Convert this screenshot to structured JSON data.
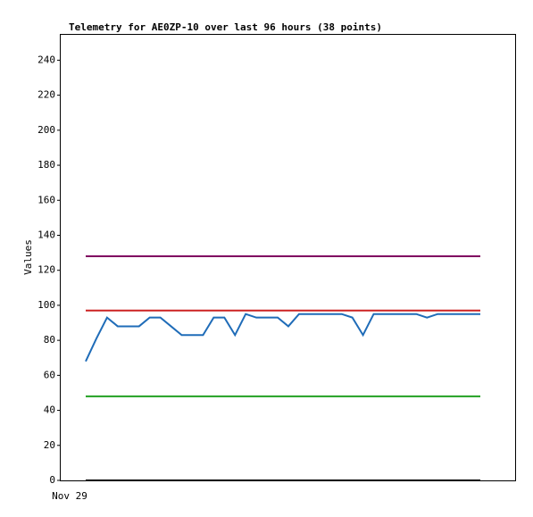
{
  "chart_data": {
    "type": "line",
    "title": "Telemetry for AE0ZP-10 over last 96 hours (38 points)",
    "y_label": "Values",
    "categories": [
      "Nov 29",
      null,
      null,
      null,
      null,
      null,
      null,
      null,
      null,
      null,
      null,
      null,
      null,
      null,
      null,
      null,
      null,
      null,
      null,
      null,
      null,
      null,
      null,
      null,
      null,
      null,
      null,
      null,
      null,
      null,
      null,
      null,
      null,
      null,
      null,
      null,
      null,
      null
    ],
    "series": [
      {
        "color": "#800060",
        "values": [
          128,
          128,
          128,
          128,
          128,
          128,
          128,
          128,
          128,
          128,
          128,
          128,
          128,
          128,
          128,
          128,
          128,
          128,
          128,
          128,
          128,
          128,
          128,
          128,
          128,
          128,
          128,
          128,
          128,
          128,
          128,
          128,
          128,
          128,
          128,
          128,
          128,
          128
        ]
      },
      {
        "color": "#cc2222",
        "values": [
          97,
          97,
          97,
          97,
          97,
          97,
          97,
          97,
          97,
          97,
          97,
          97,
          97,
          97,
          97,
          97,
          97,
          97,
          97,
          97,
          97,
          97,
          97,
          97,
          97,
          97,
          97,
          97,
          97,
          97,
          97,
          97,
          97,
          97,
          97,
          97,
          97,
          97
        ]
      },
      {
        "color": "#22a022",
        "values": [
          48,
          48,
          48,
          48,
          48,
          48,
          48,
          48,
          48,
          48,
          48,
          48,
          48,
          48,
          48,
          48,
          48,
          48,
          48,
          48,
          48,
          48,
          48,
          48,
          48,
          48,
          48,
          48,
          48,
          48,
          48,
          48,
          48,
          48,
          48,
          48,
          48,
          48
        ]
      },
      {
        "color": "#000000",
        "values": [
          0,
          0,
          0,
          0,
          0,
          0,
          0,
          0,
          0,
          0,
          0,
          0,
          0,
          0,
          0,
          0,
          0,
          0,
          0,
          0,
          0,
          0,
          0,
          0,
          0,
          0,
          0,
          0,
          0,
          0,
          0,
          0,
          0,
          0,
          0,
          0,
          0,
          0
        ]
      },
      {
        "color": "#1f6cb8",
        "values": [
          68,
          81,
          93,
          88,
          88,
          88,
          93,
          93,
          88,
          83,
          83,
          83,
          93,
          93,
          83,
          95,
          93,
          93,
          93,
          88,
          95,
          95,
          95,
          95,
          95,
          93,
          83,
          95,
          95,
          95,
          95,
          95,
          93,
          95,
          95,
          95,
          95,
          95
        ]
      }
    ],
    "ylim": [
      0,
      255
    ],
    "yticks": [
      0,
      20,
      40,
      60,
      80,
      100,
      120,
      140,
      160,
      180,
      200,
      220,
      240
    ]
  }
}
